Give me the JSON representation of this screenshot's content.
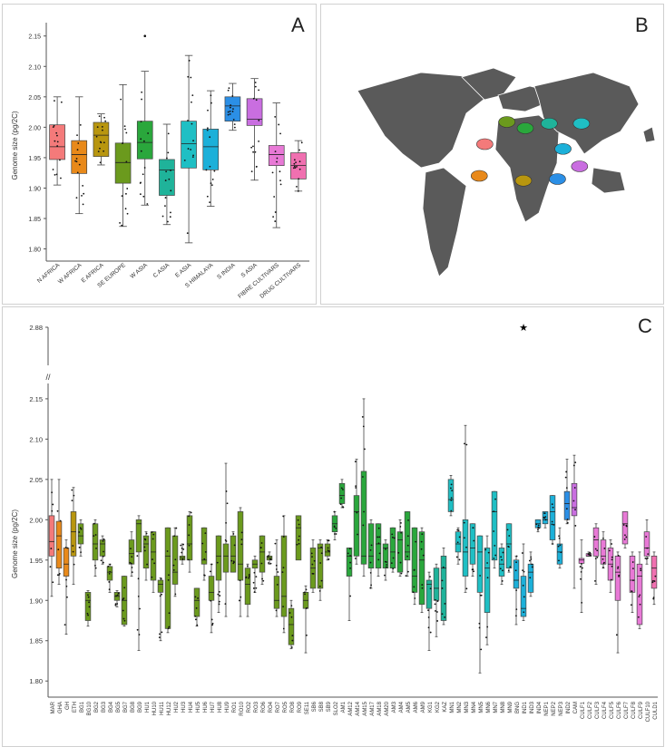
{
  "panels": {
    "a": {
      "letter": "A"
    },
    "b": {
      "letter": "B"
    },
    "c": {
      "letter": "C"
    }
  },
  "chart_data": [
    {
      "panel": "A",
      "type": "box",
      "ylabel": "Genome size (pg/2C)",
      "ylim": [
        1.78,
        2.16
      ],
      "yticks": [
        "1.80",
        "1.85",
        "1.90",
        "1.95",
        "2.00",
        "2.05",
        "2.10",
        "2.15"
      ],
      "grid": false,
      "categories": [
        "N AFRICA",
        "W AFRICA",
        "E AFRICA",
        "SE EUROPE",
        "W ASIA",
        "C ASIA",
        "E ASIA",
        "S HIMALAYA",
        "S INDIA",
        "S ASIA",
        "FIBRE CULTIVARS",
        "DRUG CULTIVARS"
      ],
      "colors": [
        "#f47a7a",
        "#e8891a",
        "#b8960f",
        "#6b9a1d",
        "#2aa73c",
        "#1fb39a",
        "#1fbfc4",
        "#1cb0d9",
        "#2b8fe6",
        "#c96ee0",
        "#e879d6",
        "#f070b0"
      ],
      "boxes": [
        {
          "q1": 1.947,
          "median": 1.968,
          "q3": 2.004,
          "min": 1.905,
          "max": 2.05
        },
        {
          "q1": 1.924,
          "median": 1.955,
          "q3": 1.978,
          "min": 1.858,
          "max": 2.05
        },
        {
          "q1": 1.952,
          "median": 1.987,
          "q3": 2.008,
          "min": 1.938,
          "max": 2.022
        },
        {
          "q1": 1.908,
          "median": 1.942,
          "q3": 1.974,
          "min": 1.837,
          "max": 2.07
        },
        {
          "q1": 1.948,
          "median": 1.975,
          "q3": 2.01,
          "min": 1.872,
          "max": 2.092
        },
        {
          "q1": 1.888,
          "median": 1.93,
          "q3": 1.947,
          "min": 1.84,
          "max": 2.005
        },
        {
          "q1": 1.933,
          "median": 1.973,
          "q3": 2.01,
          "min": 1.81,
          "max": 2.118
        },
        {
          "q1": 1.93,
          "median": 1.968,
          "q3": 1.997,
          "min": 1.87,
          "max": 2.06
        },
        {
          "q1": 2.01,
          "median": 2.035,
          "q3": 2.05,
          "min": 1.995,
          "max": 2.072
        },
        {
          "q1": 2.003,
          "median": 2.013,
          "q3": 2.047,
          "min": 1.913,
          "max": 2.08
        },
        {
          "q1": 1.937,
          "median": 1.955,
          "q3": 1.97,
          "min": 1.835,
          "max": 2.04
        },
        {
          "q1": 1.915,
          "median": 1.937,
          "q3": 1.958,
          "min": 1.895,
          "max": 1.978
        }
      ],
      "outliers": [
        {
          "category": "W ASIA",
          "value": 2.15
        }
      ]
    },
    {
      "panel": "B",
      "type": "map",
      "land_color": "#5a5a5a",
      "regions": [
        {
          "name": "N AFRICA",
          "color": "#f47a7a",
          "lon": -2,
          "lat": 32
        },
        {
          "name": "W AFRICA",
          "color": "#e8891a",
          "lon": -8,
          "lat": 12
        },
        {
          "name": "E AFRICA",
          "color": "#b8960f",
          "lon": 40,
          "lat": 9
        },
        {
          "name": "SE EUROPE",
          "color": "#6b9a1d",
          "lon": 22,
          "lat": 46
        },
        {
          "name": "W ASIA",
          "color": "#2aa73c",
          "lon": 42,
          "lat": 42
        },
        {
          "name": "C ASIA",
          "color": "#1fb39a",
          "lon": 68,
          "lat": 45
        },
        {
          "name": "E ASIA",
          "color": "#1fbfc4",
          "lon": 103,
          "lat": 45
        },
        {
          "name": "S HIMALAYA",
          "color": "#1cb0d9",
          "lon": 83,
          "lat": 29
        },
        {
          "name": "S INDIA",
          "color": "#2b8fe6",
          "lon": 77,
          "lat": 10
        },
        {
          "name": "S ASIA",
          "color": "#c96ee0",
          "lon": 101,
          "lat": 18
        }
      ]
    },
    {
      "panel": "C",
      "type": "box",
      "ylabel": "Genome size (pg/2C)",
      "ylim": [
        1.78,
        2.16
      ],
      "yticks": [
        "1.80",
        "1.85",
        "1.90",
        "1.95",
        "2.00",
        "2.05",
        "2.10",
        "2.15"
      ],
      "break_tick": "2.88",
      "break_symbol": "//",
      "star_symbol": "★",
      "star_category": "IND1",
      "grid": false,
      "categories": [
        "MAR",
        "GHA",
        "GH",
        "ETH",
        "BG1",
        "BG10",
        "BG2",
        "BG3",
        "BG4",
        "BG5",
        "BG7",
        "BG8",
        "BG9",
        "HU1",
        "HU10",
        "HU11",
        "HU12",
        "HU2",
        "HU3",
        "HU4",
        "HU5",
        "HU6",
        "HU7",
        "HU8",
        "HU9",
        "RO1",
        "RO10",
        "RO2",
        "RO3",
        "RO6",
        "RO4",
        "RO7",
        "RO5",
        "RO8",
        "RO9",
        "SE11",
        "SB6",
        "SB8",
        "SB9",
        "SLO2",
        "AM1",
        "AM12",
        "AM14",
        "AM15",
        "AM17",
        "AM18",
        "AM20",
        "AM3",
        "AM4",
        "AM5",
        "AM6",
        "AM9",
        "KG1",
        "KG2",
        "KAZ",
        "MN1",
        "MN2",
        "MN3",
        "MN4",
        "MN5",
        "MN6",
        "MN7",
        "MN8",
        "MN9",
        "BNG",
        "IND1",
        "IND3",
        "IND4",
        "NEP1",
        "NEP2",
        "NEP3",
        "IND2",
        "CAM",
        "CULF1",
        "CULF2",
        "CULF3",
        "CULF4",
        "CULF5",
        "CULF6",
        "CULF7",
        "CULF8",
        "CULF9",
        "CULF10",
        "CULD1"
      ],
      "group_colors": [
        "#f47a7a",
        "#e8891a",
        "#e8891a",
        "#b8960f",
        "#6b9a1d",
        "#6b9a1d",
        "#6b9a1d",
        "#6b9a1d",
        "#6b9a1d",
        "#6b9a1d",
        "#6b9a1d",
        "#6b9a1d",
        "#6b9a1d",
        "#6b9a1d",
        "#6b9a1d",
        "#6b9a1d",
        "#6b9a1d",
        "#6b9a1d",
        "#6b9a1d",
        "#6b9a1d",
        "#6b9a1d",
        "#6b9a1d",
        "#6b9a1d",
        "#6b9a1d",
        "#6b9a1d",
        "#6b9a1d",
        "#6b9a1d",
        "#6b9a1d",
        "#6b9a1d",
        "#6b9a1d",
        "#6b9a1d",
        "#6b9a1d",
        "#6b9a1d",
        "#6b9a1d",
        "#6b9a1d",
        "#6b9a1d",
        "#6b9a1d",
        "#6b9a1d",
        "#6b9a1d",
        "#2aa73c",
        "#2aa73c",
        "#2aa73c",
        "#2aa73c",
        "#2aa73c",
        "#2aa73c",
        "#2aa73c",
        "#2aa73c",
        "#2aa73c",
        "#2aa73c",
        "#2aa73c",
        "#2aa73c",
        "#2aa73c",
        "#1fb39a",
        "#1fb39a",
        "#1fb39a",
        "#1fbfc4",
        "#1fbfc4",
        "#1fbfc4",
        "#1fbfc4",
        "#1fbfc4",
        "#1fbfc4",
        "#1fbfc4",
        "#1fbfc4",
        "#1fbfc4",
        "#1cb0d9",
        "#1cb0d9",
        "#1cb0d9",
        "#1cb0d9",
        "#1cb0d9",
        "#1cb0d9",
        "#1cb0d9",
        "#2b8fe6",
        "#c96ee0",
        "#e879d6",
        "#e879d6",
        "#e879d6",
        "#e879d6",
        "#e879d6",
        "#e879d6",
        "#e879d6",
        "#e879d6",
        "#e879d6",
        "#e879d6",
        "#f070b0"
      ],
      "boxes": [
        [
          1.955,
          1.973,
          2.005,
          1.905,
          2.05
        ],
        [
          1.94,
          1.98,
          1.998,
          1.92,
          2.05
        ],
        [
          1.93,
          1.945,
          1.965,
          1.858,
          1.975
        ],
        [
          1.955,
          1.985,
          2.01,
          1.92,
          2.04
        ],
        [
          1.97,
          1.98,
          1.995,
          1.955,
          2.0
        ],
        [
          1.875,
          1.9,
          1.91,
          1.868,
          1.912
        ],
        [
          1.95,
          1.97,
          1.995,
          1.93,
          2.0
        ],
        [
          1.955,
          1.97,
          1.975,
          1.945,
          1.98
        ],
        [
          1.925,
          1.935,
          1.942,
          1.91,
          1.945
        ],
        [
          1.9,
          1.905,
          1.91,
          1.892,
          1.912
        ],
        [
          1.87,
          1.9,
          1.93,
          1.868,
          1.93
        ],
        [
          1.945,
          1.958,
          1.975,
          1.93,
          1.985
        ],
        [
          1.96,
          1.995,
          2.0,
          1.838,
          2.005
        ],
        [
          1.94,
          1.97,
          1.98,
          1.925,
          1.985
        ],
        [
          1.925,
          1.96,
          1.985,
          1.91,
          1.985
        ],
        [
          1.91,
          1.92,
          1.925,
          1.85,
          1.928
        ],
        [
          1.865,
          1.955,
          1.99,
          1.86,
          1.99
        ],
        [
          1.92,
          1.935,
          1.98,
          1.905,
          1.99
        ],
        [
          1.95,
          1.953,
          1.955,
          1.945,
          1.97
        ],
        [
          1.95,
          1.97,
          2.005,
          1.935,
          2.01
        ],
        [
          1.88,
          1.9,
          1.915,
          1.868,
          1.915
        ],
        [
          1.945,
          1.95,
          1.99,
          1.925,
          1.99
        ],
        [
          1.9,
          1.91,
          1.93,
          1.86,
          1.945
        ],
        [
          1.925,
          1.955,
          1.98,
          1.885,
          1.98
        ],
        [
          1.935,
          1.955,
          1.97,
          1.88,
          2.07
        ],
        [
          1.935,
          1.955,
          1.98,
          1.935,
          1.985
        ],
        [
          1.925,
          1.945,
          2.01,
          1.88,
          2.015
        ],
        [
          1.895,
          1.92,
          1.94,
          1.88,
          1.945
        ],
        [
          1.94,
          1.945,
          1.95,
          1.91,
          1.955
        ],
        [
          1.935,
          1.96,
          1.98,
          1.92,
          1.98
        ],
        [
          1.95,
          1.953,
          1.955,
          1.945,
          1.96
        ],
        [
          1.89,
          1.9,
          1.93,
          1.88,
          1.975
        ],
        [
          1.88,
          1.905,
          1.98,
          1.86,
          2.005
        ],
        [
          1.845,
          1.87,
          1.89,
          1.84,
          1.9
        ],
        [
          1.95,
          1.99,
          2.005,
          1.955,
          2.005
        ],
        [
          1.89,
          1.9,
          1.91,
          1.835,
          1.918
        ],
        [
          1.915,
          1.94,
          1.965,
          1.91,
          1.975
        ],
        [
          1.915,
          1.965,
          1.97,
          1.9,
          1.975
        ],
        [
          1.955,
          1.96,
          1.97,
          1.95,
          1.975
        ],
        [
          1.985,
          1.995,
          2.005,
          1.975,
          2.01
        ],
        [
          2.02,
          2.03,
          2.045,
          2.015,
          2.05
        ],
        [
          1.93,
          1.955,
          1.965,
          1.875,
          1.965
        ],
        [
          1.955,
          2.01,
          2.03,
          1.945,
          2.075
        ],
        [
          1.945,
          1.955,
          2.06,
          1.93,
          2.15
        ],
        [
          1.94,
          1.955,
          1.995,
          1.915,
          2.0
        ],
        [
          1.94,
          1.97,
          1.995,
          1.93,
          1.995
        ],
        [
          1.94,
          1.965,
          1.97,
          1.925,
          1.975
        ],
        [
          1.94,
          1.96,
          1.99,
          1.935,
          1.99
        ],
        [
          1.935,
          1.975,
          1.985,
          1.93,
          2.0
        ],
        [
          1.95,
          1.96,
          2.01,
          1.93,
          2.01
        ],
        [
          1.91,
          1.93,
          1.99,
          1.895,
          1.99
        ],
        [
          1.895,
          1.95,
          1.985,
          1.885,
          1.99
        ],
        [
          1.89,
          1.92,
          1.925,
          1.838,
          1.935
        ],
        [
          1.9,
          1.915,
          1.94,
          1.855,
          1.945
        ],
        [
          1.875,
          1.94,
          1.955,
          1.87,
          1.965
        ],
        [
          2.01,
          2.025,
          2.05,
          2.005,
          2.055
        ],
        [
          1.96,
          1.97,
          1.985,
          1.945,
          1.99
        ],
        [
          1.93,
          1.96,
          2.0,
          1.91,
          2.117
        ],
        [
          1.945,
          1.965,
          1.995,
          1.93,
          1.995
        ],
        [
          1.91,
          1.96,
          1.98,
          1.81,
          1.98
        ],
        [
          1.885,
          1.94,
          1.965,
          1.845,
          1.98
        ],
        [
          1.95,
          2.01,
          2.035,
          1.94,
          2.035
        ],
        [
          1.93,
          1.945,
          1.965,
          1.92,
          1.97
        ],
        [
          1.94,
          1.97,
          1.995,
          1.935,
          1.995
        ],
        [
          1.915,
          1.925,
          1.95,
          1.87,
          1.955
        ],
        [
          1.88,
          1.89,
          1.93,
          1.875,
          1.97
        ],
        [
          1.91,
          1.935,
          1.945,
          1.905,
          1.96
        ],
        [
          1.99,
          1.995,
          2.0,
          1.985,
          2.0
        ],
        [
          1.995,
          2.0,
          2.01,
          1.99,
          2.01
        ],
        [
          1.975,
          2.01,
          2.03,
          1.97,
          2.03
        ],
        [
          1.945,
          1.96,
          1.97,
          1.94,
          1.99
        ],
        [
          2.0,
          2.02,
          2.035,
          1.995,
          2.075
        ],
        [
          2.005,
          2.015,
          2.045,
          1.915,
          2.08
        ],
        [
          1.946,
          1.95,
          1.952,
          1.885,
          1.975
        ],
        [
          1.955,
          1.955,
          1.958,
          1.955,
          1.96
        ],
        [
          1.955,
          1.975,
          1.99,
          1.92,
          1.995
        ],
        [
          1.945,
          1.955,
          1.975,
          1.94,
          1.985
        ],
        [
          1.925,
          1.945,
          1.965,
          1.91,
          1.975
        ],
        [
          1.9,
          1.935,
          1.955,
          1.835,
          1.96
        ],
        [
          1.97,
          1.995,
          2.01,
          1.965,
          2.01
        ],
        [
          1.91,
          1.925,
          1.955,
          1.885,
          1.96
        ],
        [
          1.87,
          1.93,
          1.945,
          1.865,
          1.96
        ],
        [
          1.955,
          1.965,
          1.985,
          1.945,
          2.0
        ],
        [
          1.915,
          1.94,
          1.955,
          1.895,
          1.96
        ]
      ]
    }
  ]
}
